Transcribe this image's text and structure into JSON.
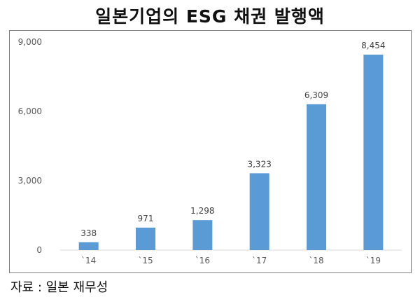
{
  "title": "일본기업의 ESG 채권 발행액",
  "source": "자료 : 일본 재무성",
  "chart_data": {
    "type": "bar",
    "title": "일본기업의 ESG 채권 발행액",
    "categories": [
      "`14",
      "`15",
      "`16",
      "`17",
      "`18",
      "`19"
    ],
    "values": [
      338,
      971,
      1298,
      3323,
      6309,
      8454
    ],
    "value_labels": [
      "338",
      "971",
      "1,298",
      "3,323",
      "6,309",
      "8,454"
    ],
    "yticks": [
      0,
      3000,
      6000,
      9000
    ],
    "ytick_labels": [
      "0",
      "3,000",
      "6,000",
      "9,000"
    ],
    "ylim": [
      0,
      9000
    ],
    "xlabel": "",
    "ylabel": "",
    "grid": false,
    "bar_color": "#5b9bd5"
  }
}
